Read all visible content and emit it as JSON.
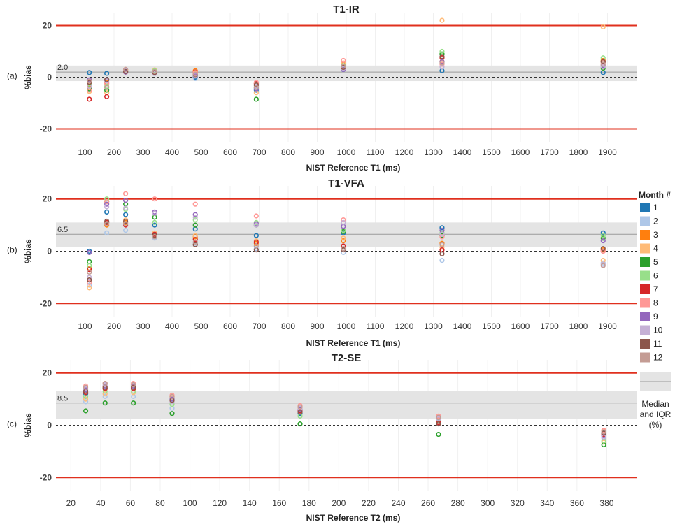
{
  "colors": {
    "limit_line": "#e0301e",
    "iqr_band": "#e4e4e4",
    "median_line": "#9a9a9a",
    "zero_line": "#333333",
    "grid": "#f0f0f0"
  },
  "legend": {
    "title": "Month #",
    "items": [
      {
        "label": "1",
        "color": "#1f77b4"
      },
      {
        "label": "2",
        "color": "#aec7e8"
      },
      {
        "label": "3",
        "color": "#ff7f0e"
      },
      {
        "label": "4",
        "color": "#ffbb78"
      },
      {
        "label": "5",
        "color": "#2ca02c"
      },
      {
        "label": "6",
        "color": "#98df8a"
      },
      {
        "label": "7",
        "color": "#d62728"
      },
      {
        "label": "8",
        "color": "#ff9896"
      },
      {
        "label": "9",
        "color": "#9467bd"
      },
      {
        "label": "10",
        "color": "#c5b0d5"
      },
      {
        "label": "11",
        "color": "#8c564b"
      },
      {
        "label": "12",
        "color": "#c49c94"
      }
    ],
    "median_label_lines": [
      "Median",
      "and IQR",
      "(%)"
    ]
  },
  "chart_data": [
    {
      "type": "scatter",
      "title": "T1-IR",
      "panel_label": "(a)",
      "xlabel": "NIST Reference T1 (ms)",
      "ylabel": "%bias",
      "xlim": [
        0,
        2000
      ],
      "ylim": [
        -25,
        25
      ],
      "xticks": [
        100,
        200,
        300,
        400,
        500,
        600,
        700,
        800,
        900,
        1000,
        1100,
        1200,
        1300,
        1400,
        1500,
        1600,
        1700,
        1800,
        1900
      ],
      "yticks": [
        20,
        0,
        -20
      ],
      "limit_lines": [
        20,
        -20
      ],
      "median": 2.0,
      "median_label": "2.0",
      "iqr": [
        -1.5,
        4.5
      ],
      "x_categories": [
        115,
        175,
        240,
        340,
        480,
        690,
        990,
        1330,
        1885
      ],
      "series": [
        {
          "name": "1",
          "values": [
            1.8,
            1.5,
            2.0,
            1.5,
            0.0,
            -5.0,
            3.0,
            2.5,
            1.8
          ]
        },
        {
          "name": "2",
          "values": [
            -2.0,
            -2.5,
            2.5,
            2.0,
            -0.5,
            -4.0,
            3.5,
            5.0,
            5.0
          ]
        },
        {
          "name": "3",
          "values": [
            -3.0,
            -2.0,
            2.8,
            2.5,
            2.5,
            -3.0,
            5.0,
            6.0,
            6.5
          ]
        },
        {
          "name": "4",
          "values": [
            -5.5,
            -6.0,
            2.8,
            2.8,
            1.5,
            -6.0,
            5.5,
            22.0,
            19.5
          ]
        },
        {
          "name": "5",
          "values": [
            -4.5,
            -5.0,
            2.2,
            2.2,
            0.5,
            -8.5,
            4.0,
            9.0,
            3.5
          ]
        },
        {
          "name": "6",
          "values": [
            -2.5,
            -3.5,
            2.5,
            2.5,
            1.0,
            -4.0,
            4.5,
            10.0,
            7.5
          ]
        },
        {
          "name": "7",
          "values": [
            -8.5,
            -7.5,
            2.0,
            1.8,
            2.0,
            -2.5,
            4.0,
            7.5,
            6.0
          ]
        },
        {
          "name": "8",
          "values": [
            -5.0,
            -2.5,
            3.0,
            2.0,
            1.8,
            -2.0,
            6.5,
            5.0,
            5.5
          ]
        },
        {
          "name": "9",
          "values": [
            -1.0,
            -1.0,
            2.0,
            1.5,
            0.5,
            -4.5,
            3.0,
            6.0,
            4.5
          ]
        },
        {
          "name": "10",
          "values": [
            -3.5,
            -1.5,
            2.5,
            1.5,
            0.8,
            -3.5,
            3.5,
            4.0,
            4.0
          ]
        },
        {
          "name": "11",
          "values": [
            -2.0,
            -1.0,
            2.2,
            1.8,
            1.0,
            -3.0,
            3.8,
            8.0,
            6.0
          ]
        },
        {
          "name": "12",
          "values": [
            -1.5,
            -4.0,
            3.0,
            2.2,
            1.2,
            -4.0,
            4.2,
            5.5,
            5.0
          ]
        }
      ]
    },
    {
      "type": "scatter",
      "title": "T1-VFA",
      "panel_label": "(b)",
      "xlabel": "NIST Reference T1 (ms)",
      "ylabel": "%bias",
      "xlim": [
        0,
        2000
      ],
      "ylim": [
        -25,
        25
      ],
      "xticks": [
        100,
        200,
        300,
        400,
        500,
        600,
        700,
        800,
        900,
        1000,
        1100,
        1200,
        1300,
        1400,
        1500,
        1600,
        1700,
        1800,
        1900
      ],
      "yticks": [
        20,
        0,
        -20
      ],
      "limit_lines": [
        20,
        -20
      ],
      "median": 6.5,
      "median_label": "6.5",
      "iqr": [
        1.5,
        11.0
      ],
      "x_categories": [
        115,
        175,
        240,
        340,
        480,
        690,
        990,
        1330,
        1885
      ],
      "series": [
        {
          "name": "1",
          "values": [
            0.0,
            15.0,
            14.0,
            10.0,
            8.5,
            6.0,
            7.0,
            9.0,
            7.0
          ]
        },
        {
          "name": "2",
          "values": [
            -13.0,
            7.0,
            8.0,
            5.0,
            3.0,
            1.0,
            -0.5,
            -3.5,
            -4.5
          ]
        },
        {
          "name": "3",
          "values": [
            -6.5,
            10.0,
            11.0,
            6.0,
            5.5,
            3.0,
            4.0,
            3.0,
            0.5
          ]
        },
        {
          "name": "4",
          "values": [
            -14.0,
            11.0,
            12.0,
            7.0,
            6.0,
            4.0,
            5.0,
            1.5,
            -3.5
          ]
        },
        {
          "name": "5",
          "values": [
            -4.0,
            19.0,
            18.0,
            13.0,
            10.0,
            10.0,
            7.5,
            6.0,
            5.0
          ]
        },
        {
          "name": "6",
          "values": [
            -5.5,
            20.0,
            16.0,
            11.0,
            12.0,
            11.0,
            8.0,
            7.0,
            6.0
          ]
        },
        {
          "name": "7",
          "values": [
            -7.0,
            11.0,
            10.0,
            6.5,
            4.5,
            3.5,
            2.0,
            0.5,
            0.0
          ]
        },
        {
          "name": "8",
          "values": [
            -12.0,
            19.0,
            22.0,
            20.0,
            18.0,
            13.5,
            12.0,
            5.5,
            0.0
          ]
        },
        {
          "name": "9",
          "values": [
            -0.5,
            18.0,
            19.5,
            15.0,
            14.0,
            10.5,
            9.5,
            8.0,
            4.0
          ]
        },
        {
          "name": "10",
          "values": [
            -10.0,
            17.0,
            16.5,
            14.5,
            13.0,
            10.0,
            11.0,
            6.5,
            -5.0
          ]
        },
        {
          "name": "11",
          "values": [
            -11.0,
            11.5,
            11.5,
            6.0,
            2.5,
            0.5,
            0.5,
            -1.0,
            1.0
          ]
        },
        {
          "name": "12",
          "values": [
            -8.0,
            10.5,
            10.5,
            5.5,
            3.5,
            2.0,
            1.0,
            2.5,
            -5.5
          ]
        }
      ]
    },
    {
      "type": "scatter",
      "title": "T2-SE",
      "panel_label": "(c)",
      "xlabel": "NIST Reference T2 (ms)",
      "ylabel": "%bias",
      "xlim": [
        10,
        400
      ],
      "ylim": [
        -25,
        25
      ],
      "xticks": [
        20,
        40,
        60,
        80,
        100,
        120,
        140,
        160,
        180,
        200,
        220,
        240,
        260,
        280,
        300,
        320,
        340,
        360,
        380
      ],
      "yticks": [
        20,
        0,
        -20
      ],
      "limit_lines": [
        20,
        -20
      ],
      "median": 8.5,
      "median_label": "8.5",
      "iqr": [
        2.5,
        13.0
      ],
      "x_categories": [
        30,
        43,
        62,
        88,
        174,
        267,
        378
      ],
      "series": [
        {
          "name": "1",
          "values": [
            12.0,
            14.0,
            14.0,
            10.0,
            4.5,
            1.0,
            -3.0
          ]
        },
        {
          "name": "2",
          "values": [
            9.0,
            11.0,
            11.0,
            6.5,
            5.0,
            2.0,
            -5.0
          ]
        },
        {
          "name": "3",
          "values": [
            13.0,
            14.5,
            14.5,
            11.0,
            6.0,
            2.0,
            -2.0
          ]
        },
        {
          "name": "4",
          "values": [
            10.0,
            12.0,
            12.5,
            10.5,
            7.0,
            3.0,
            -6.5
          ]
        },
        {
          "name": "5",
          "values": [
            5.5,
            8.5,
            8.5,
            4.5,
            0.5,
            -3.5,
            -7.5
          ]
        },
        {
          "name": "6",
          "values": [
            11.0,
            13.0,
            13.0,
            8.0,
            3.5,
            1.5,
            -6.0
          ]
        },
        {
          "name": "7",
          "values": [
            12.5,
            14.0,
            14.0,
            9.5,
            5.5,
            1.0,
            -3.5
          ]
        },
        {
          "name": "8",
          "values": [
            15.0,
            16.0,
            16.0,
            11.5,
            7.5,
            3.5,
            -2.0
          ]
        },
        {
          "name": "9",
          "values": [
            13.5,
            15.0,
            15.0,
            10.0,
            6.0,
            2.5,
            -4.0
          ]
        },
        {
          "name": "10",
          "values": [
            14.0,
            15.5,
            15.5,
            9.0,
            6.5,
            2.5,
            -4.5
          ]
        },
        {
          "name": "11",
          "values": [
            13.0,
            14.5,
            14.5,
            9.5,
            5.0,
            0.5,
            -3.0
          ]
        },
        {
          "name": "12",
          "values": [
            14.5,
            16.0,
            15.5,
            11.0,
            7.0,
            3.0,
            -2.5
          ]
        }
      ]
    }
  ]
}
